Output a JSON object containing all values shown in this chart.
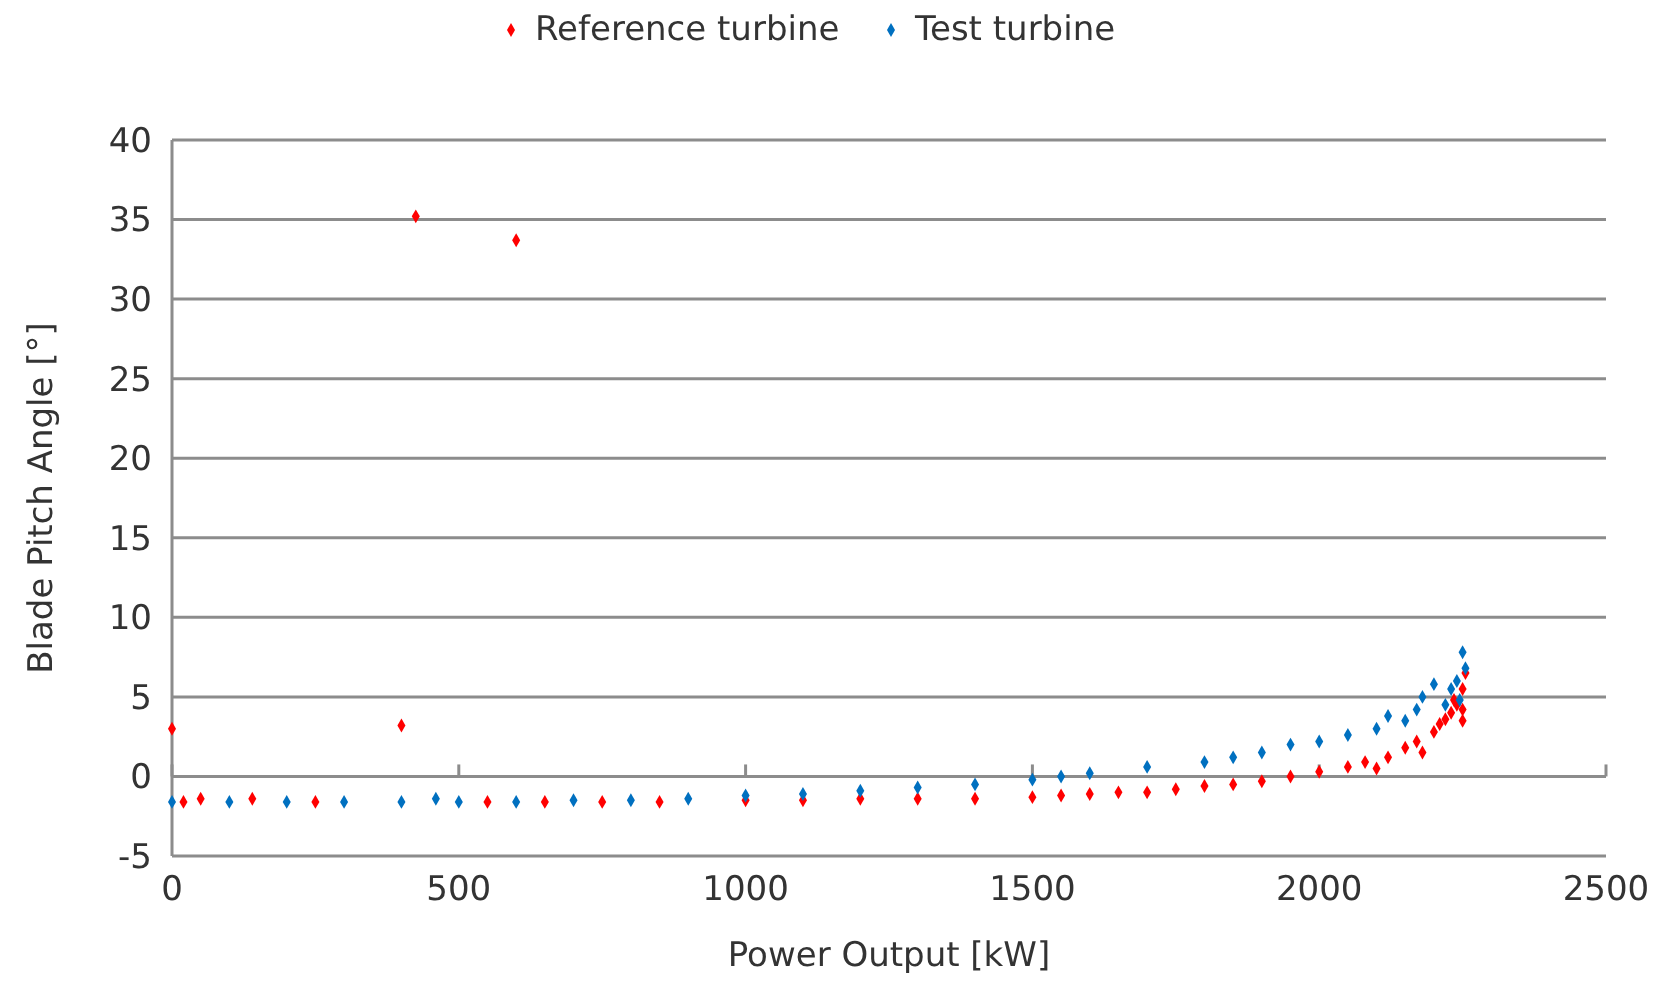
{
  "chart_data": {
    "type": "scatter",
    "xlabel": "Power Output [kW]",
    "ylabel": "Blade Pitch Angle [°]",
    "xlim": [
      0,
      2500
    ],
    "xticks": [
      0,
      500,
      1000,
      1500,
      2000,
      2500
    ],
    "ylim": [
      -5,
      40
    ],
    "yticks": [
      -5,
      0,
      5,
      10,
      15,
      20,
      25,
      30,
      35,
      40
    ],
    "grid": "y",
    "legend": "top",
    "marker": "diamond",
    "series": [
      {
        "name": "Reference turbine",
        "color": "#ff0000",
        "x": [
          0,
          20,
          50,
          140,
          250,
          400,
          425,
          550,
          600,
          650,
          750,
          850,
          1000,
          1100,
          1200,
          1300,
          1400,
          1500,
          1550,
          1600,
          1650,
          1700,
          1750,
          1800,
          1850,
          1900,
          1950,
          2000,
          2050,
          2080,
          2100,
          2120,
          2150,
          2170,
          2180,
          2200,
          2210,
          2220,
          2230,
          2240,
          2235,
          2250,
          2250,
          2255,
          2250
        ],
        "values": [
          3.0,
          -1.6,
          -1.4,
          -1.4,
          -1.6,
          3.2,
          35.2,
          -1.6,
          33.7,
          -1.6,
          -1.6,
          -1.6,
          -1.5,
          -1.5,
          -1.4,
          -1.4,
          -1.4,
          -1.3,
          -1.2,
          -1.1,
          -1.0,
          -1.0,
          -0.8,
          -0.6,
          -0.5,
          -0.3,
          0.0,
          0.3,
          0.6,
          0.9,
          0.5,
          1.2,
          1.8,
          2.2,
          1.5,
          2.8,
          3.3,
          3.6,
          4.0,
          4.5,
          4.8,
          5.5,
          4.2,
          6.5,
          3.5
        ]
      },
      {
        "name": "Test turbine",
        "color": "#0070c0",
        "x": [
          0,
          100,
          200,
          300,
          400,
          460,
          500,
          600,
          700,
          800,
          900,
          1000,
          1100,
          1200,
          1300,
          1400,
          1500,
          1550,
          1600,
          1700,
          1800,
          1850,
          1900,
          1950,
          2000,
          2050,
          2100,
          2120,
          2150,
          2170,
          2180,
          2200,
          2220,
          2230,
          2240,
          2250,
          2255,
          2245
        ],
        "values": [
          -1.6,
          -1.6,
          -1.6,
          -1.6,
          -1.6,
          -1.4,
          -1.6,
          -1.6,
          -1.5,
          -1.5,
          -1.4,
          -1.2,
          -1.1,
          -0.9,
          -0.7,
          -0.5,
          -0.2,
          0.0,
          0.2,
          0.6,
          0.9,
          1.2,
          1.5,
          2.0,
          2.2,
          2.6,
          3.0,
          3.8,
          3.5,
          4.2,
          5.0,
          5.8,
          4.5,
          5.5,
          6.0,
          7.8,
          6.8,
          4.8
        ]
      }
    ]
  }
}
